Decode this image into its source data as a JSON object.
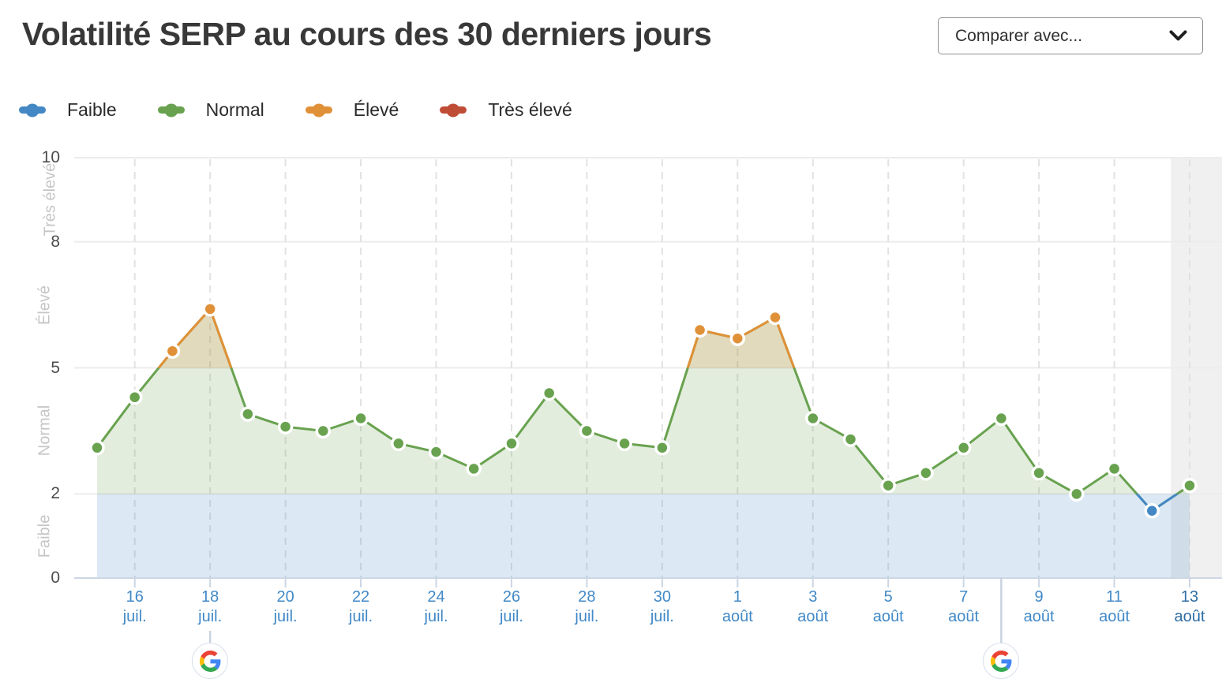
{
  "page": {
    "title": "Volatilité SERP au cours des 30 derniers jours"
  },
  "compare": {
    "label": "Comparer avec...",
    "icon": "chevron-down-icon"
  },
  "legend": {
    "items": [
      {
        "label": "Faible",
        "color": "#4388c4"
      },
      {
        "label": "Normal",
        "color": "#68a24f"
      },
      {
        "label": "Élevé",
        "color": "#e09138"
      },
      {
        "label": "Très élevé",
        "color": "#bf4c35"
      }
    ]
  },
  "chart_data": {
    "type": "line",
    "title": "Volatilité SERP au cours des 30 derniers jours",
    "series_name": "Volatilité SERP",
    "x": [
      "15 juil.",
      "16 juil.",
      "17 juil.",
      "18 juil.",
      "19 juil.",
      "20 juil.",
      "21 juil.",
      "22 juil.",
      "23 juil.",
      "24 juil.",
      "25 juil.",
      "26 juil.",
      "27 juil.",
      "28 juil.",
      "29 juil.",
      "30 juil.",
      "31 juil.",
      "1 août",
      "2 août",
      "3 août",
      "4 août",
      "5 août",
      "6 août",
      "7 août",
      "8 août",
      "9 août",
      "10 août",
      "11 août",
      "12 août",
      "13 août"
    ],
    "values": [
      3.1,
      4.3,
      5.4,
      6.4,
      3.9,
      3.6,
      3.5,
      3.8,
      3.2,
      3.0,
      2.6,
      3.2,
      4.4,
      3.5,
      3.2,
      3.1,
      5.9,
      5.7,
      6.2,
      3.8,
      3.3,
      2.2,
      2.5,
      3.1,
      3.8,
      2.5,
      2.0,
      2.6,
      1.6,
      2.2
    ],
    "ylim": [
      0,
      10
    ],
    "yticks": [
      0,
      2,
      5,
      8,
      10
    ],
    "grid": true,
    "zones": [
      {
        "label": "Faible",
        "from": 0,
        "to": 2,
        "color": "#4388c4"
      },
      {
        "label": "Normal",
        "from": 2,
        "to": 5,
        "color": "#68a24f"
      },
      {
        "label": "Élevé",
        "from": 5,
        "to": 8,
        "color": "#e09138"
      },
      {
        "label": "Très élevé",
        "from": 8,
        "to": 10,
        "color": "#bf4c35"
      }
    ],
    "x_ticks": [
      {
        "day": "16",
        "month": "juil."
      },
      {
        "day": "18",
        "month": "juil."
      },
      {
        "day": "20",
        "month": "juil."
      },
      {
        "day": "22",
        "month": "juil."
      },
      {
        "day": "24",
        "month": "juil."
      },
      {
        "day": "26",
        "month": "juil."
      },
      {
        "day": "28",
        "month": "juil."
      },
      {
        "day": "30",
        "month": "juil."
      },
      {
        "day": "1",
        "month": "août"
      },
      {
        "day": "3",
        "month": "août"
      },
      {
        "day": "5",
        "month": "août"
      },
      {
        "day": "7",
        "month": "août"
      },
      {
        "day": "9",
        "month": "août"
      },
      {
        "day": "11",
        "month": "août"
      },
      {
        "day": "13",
        "month": "août"
      }
    ],
    "tick_color": "#4189c7",
    "last_tick_color": "#2e6da4",
    "annotations": [
      {
        "icon": "google-icon",
        "x": "18 juil."
      },
      {
        "icon": "google-icon",
        "x": "8 août"
      }
    ],
    "highlight_band_x": "13 août",
    "legend_position": "top-left"
  }
}
